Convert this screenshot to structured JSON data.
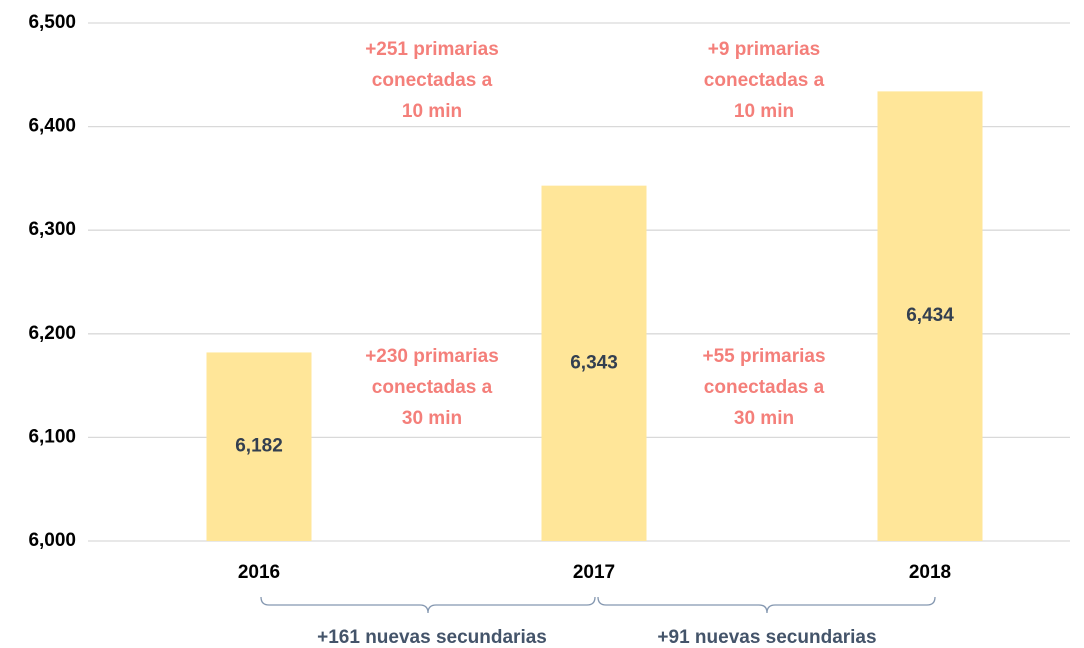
{
  "chart_data": {
    "type": "bar",
    "categories": [
      "2016",
      "2017",
      "2018"
    ],
    "values": [
      6182,
      6343,
      6434
    ],
    "value_labels": [
      "6,182",
      "6,343",
      "6,434"
    ],
    "color": "#ffe699",
    "ylim": [
      6000,
      6500
    ],
    "yticks": [
      {
        "value": 6000,
        "label": "6,000"
      },
      {
        "value": 6100,
        "label": "6,100"
      },
      {
        "value": 6200,
        "label": "6,200"
      },
      {
        "value": 6300,
        "label": "6,300"
      },
      {
        "value": 6400,
        "label": "6,400"
      },
      {
        "value": 6500,
        "label": "6,500"
      }
    ],
    "grid": true,
    "annotations": [
      {
        "lines": [
          "+251 primarias",
          "conectadas a",
          "10 min"
        ]
      },
      {
        "lines": [
          "+9 primarias",
          "conectadas a",
          "10 min"
        ]
      },
      {
        "lines": [
          "+230 primarias",
          "conectadas a",
          "30 min"
        ]
      },
      {
        "lines": [
          "+55 primarias",
          "conectadas a",
          "30 min"
        ]
      }
    ],
    "braces": [
      "+161 nuevas secundarias",
      "+91 nuevas secundarias"
    ]
  }
}
